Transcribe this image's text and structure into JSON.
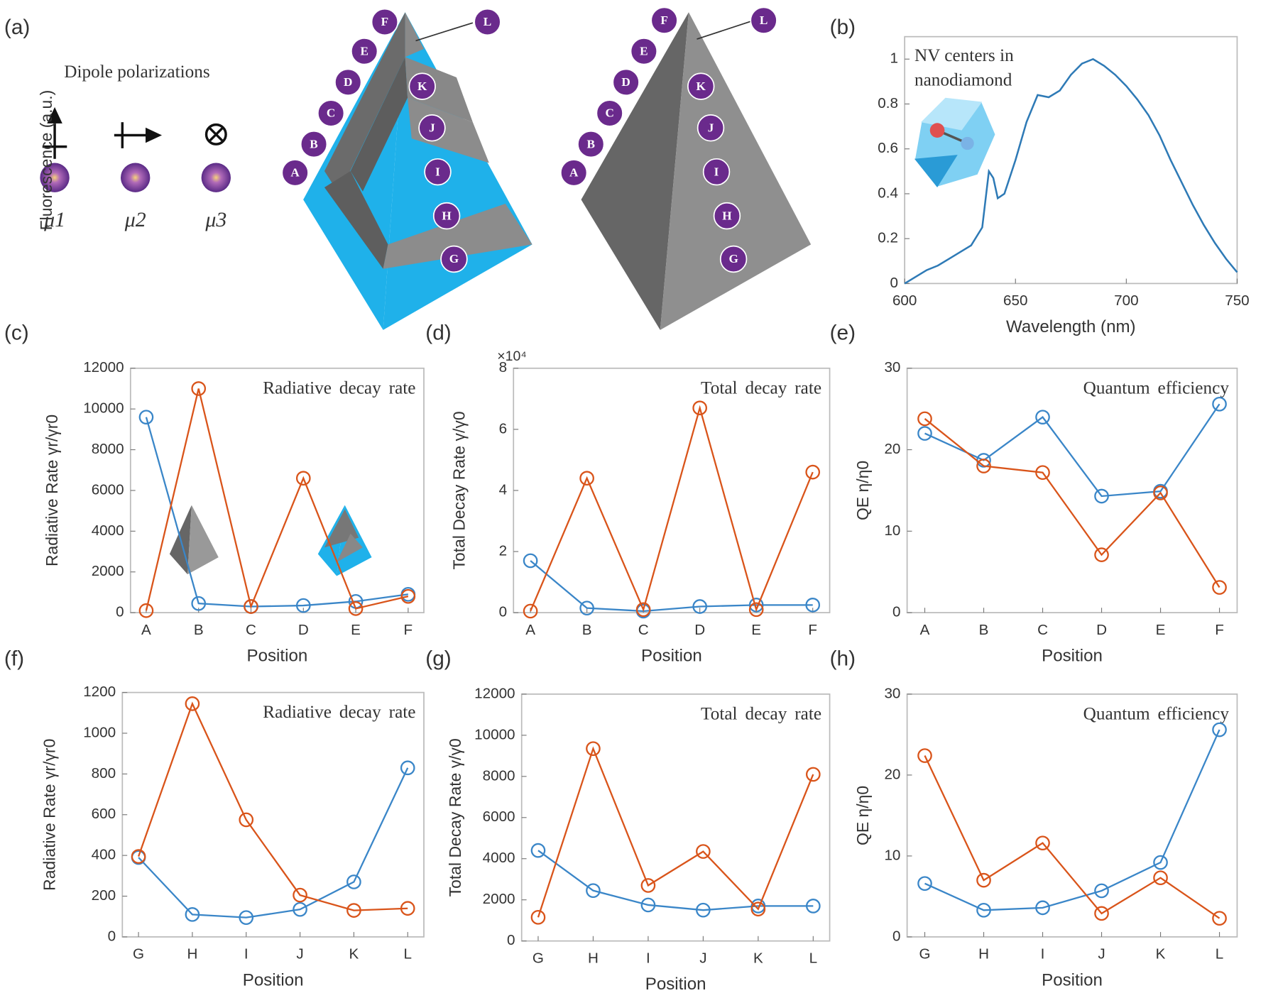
{
  "diagram": {
    "panel_label": "(a)",
    "legend_title": "Dipole polarizations",
    "dipoles": [
      "μ1",
      "μ2",
      "μ3"
    ],
    "positions": [
      "A",
      "B",
      "C",
      "D",
      "E",
      "F",
      "G",
      "H",
      "I",
      "J",
      "K",
      "L"
    ]
  },
  "chart_data": [
    {
      "type": "line",
      "panel_label": "(b)",
      "annotation": [
        "NV centers in",
        "nanodiamond"
      ],
      "xlabel": "Wavelength (nm)",
      "ylabel": "Fluorescence (a.u.)",
      "x": [
        600,
        605,
        610,
        615,
        620,
        625,
        630,
        635,
        638,
        640,
        642,
        645,
        650,
        655,
        660,
        665,
        670,
        675,
        680,
        685,
        690,
        695,
        700,
        705,
        710,
        715,
        720,
        725,
        730,
        735,
        740,
        745,
        750
      ],
      "values": [
        0.0,
        0.03,
        0.06,
        0.08,
        0.11,
        0.14,
        0.17,
        0.25,
        0.5,
        0.47,
        0.38,
        0.4,
        0.55,
        0.72,
        0.84,
        0.83,
        0.86,
        0.93,
        0.98,
        1.0,
        0.97,
        0.93,
        0.88,
        0.82,
        0.75,
        0.66,
        0.55,
        0.45,
        0.35,
        0.26,
        0.18,
        0.11,
        0.05
      ],
      "color": "#2e7ab6",
      "xlim": [
        600,
        750
      ],
      "xticks": [
        600,
        650,
        700,
        750
      ],
      "ylim": [
        0,
        1.1
      ],
      "yticks": [
        0,
        0.2,
        0.4,
        0.6,
        0.8,
        1
      ]
    },
    {
      "type": "line",
      "panel_label": "(c)",
      "title": "Radiative decay rate",
      "xlabel": "Position",
      "ylabel": "Radiative Rate γr/γr0",
      "categories": [
        "A",
        "B",
        "C",
        "D",
        "E",
        "F"
      ],
      "series": [
        {
          "color": "#3a86c8",
          "values": [
            9600,
            450,
            300,
            350,
            550,
            900
          ]
        },
        {
          "color": "#d9541a",
          "values": [
            100,
            11000,
            300,
            6600,
            200,
            800
          ]
        }
      ],
      "ylim": [
        0,
        12000
      ],
      "yticks": [
        0,
        2000,
        4000,
        6000,
        8000,
        10000,
        12000
      ]
    },
    {
      "type": "line",
      "panel_label": "(d)",
      "title": "Total decay rate",
      "xlabel": "Position",
      "ylabel": "Total Decay Rate γ/γ0",
      "y_multiplier": "×10⁴",
      "categories": [
        "A",
        "B",
        "C",
        "D",
        "E",
        "F"
      ],
      "series": [
        {
          "color": "#3a86c8",
          "values": [
            1.7,
            0.15,
            0.05,
            0.2,
            0.25,
            0.25
          ]
        },
        {
          "color": "#d9541a",
          "values": [
            0.05,
            4.4,
            0.1,
            6.7,
            0.1,
            4.6
          ]
        }
      ],
      "ylim": [
        0,
        8
      ],
      "yticks": [
        0,
        2,
        4,
        6,
        8
      ]
    },
    {
      "type": "line",
      "panel_label": "(e)",
      "title": "Quantum efficiency",
      "xlabel": "Position",
      "ylabel": "QE η/η0",
      "categories": [
        "A",
        "B",
        "C",
        "D",
        "E",
        "F"
      ],
      "series": [
        {
          "color": "#3a86c8",
          "values": [
            22,
            18.7,
            24,
            14.3,
            14.9,
            25.6
          ]
        },
        {
          "color": "#d9541a",
          "values": [
            23.8,
            18,
            17.2,
            7.1,
            14.7,
            3.1
          ]
        }
      ],
      "ylim": [
        0,
        30
      ],
      "yticks": [
        0,
        10,
        20,
        30
      ]
    },
    {
      "type": "line",
      "panel_label": "(f)",
      "title": "Radiative decay rate",
      "xlabel": "Position",
      "ylabel": "Radiative Rate γr/γr0",
      "categories": [
        "G",
        "H",
        "I",
        "J",
        "K",
        "L"
      ],
      "series": [
        {
          "color": "#3a86c8",
          "values": [
            390,
            110,
            95,
            135,
            270,
            830
          ]
        },
        {
          "color": "#d9541a",
          "values": [
            395,
            1145,
            575,
            205,
            130,
            140
          ]
        }
      ],
      "ylim": [
        0,
        1200
      ],
      "yticks": [
        0,
        200,
        400,
        600,
        800,
        1000,
        1200
      ]
    },
    {
      "type": "line",
      "panel_label": "(g)",
      "title": "Total decay rate",
      "xlabel": "Position",
      "ylabel": "Total Decay Rate γ/γ0",
      "categories": [
        "G",
        "H",
        "I",
        "J",
        "K",
        "L"
      ],
      "series": [
        {
          "color": "#3a86c8",
          "values": [
            4400,
            2450,
            1750,
            1500,
            1700,
            1700
          ]
        },
        {
          "color": "#d9541a",
          "values": [
            1150,
            9350,
            2700,
            4350,
            1550,
            8100
          ]
        }
      ],
      "ylim": [
        0,
        12000
      ],
      "yticks": [
        0,
        2000,
        4000,
        6000,
        8000,
        10000,
        12000
      ]
    },
    {
      "type": "line",
      "panel_label": "(h)",
      "title": "Quantum efficiency",
      "xlabel": "Position",
      "ylabel": "QE η/η0",
      "categories": [
        "G",
        "H",
        "I",
        "J",
        "K",
        "L"
      ],
      "series": [
        {
          "color": "#3a86c8",
          "values": [
            6.6,
            3.3,
            3.6,
            5.7,
            9.2,
            25.6
          ]
        },
        {
          "color": "#d9541a",
          "values": [
            22.4,
            7.0,
            11.6,
            2.9,
            7.3,
            2.3
          ]
        }
      ],
      "ylim": [
        0,
        30
      ],
      "yticks": [
        0,
        10,
        20,
        30
      ]
    }
  ]
}
